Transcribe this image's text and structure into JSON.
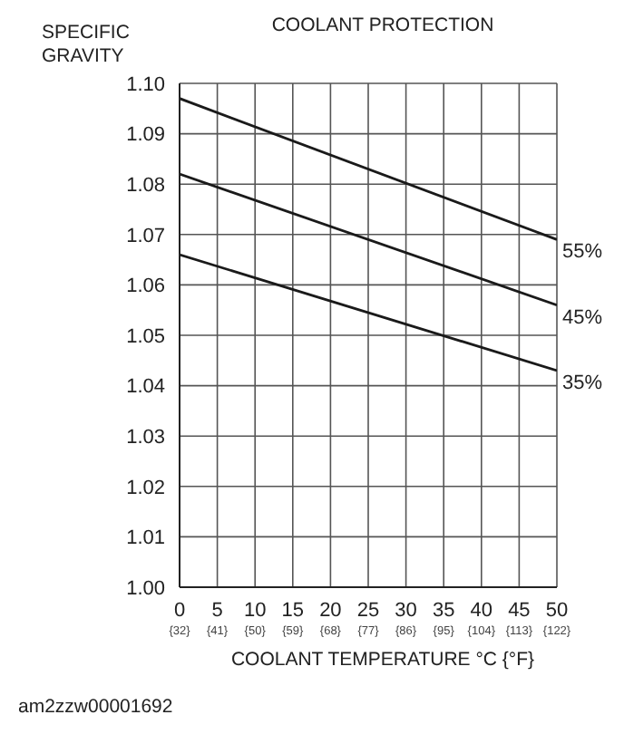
{
  "chart_data": {
    "type": "line",
    "title": "COOLANT PROTECTION",
    "ylabel": "SPECIFIC GRAVITY",
    "xlabel": "COOLANT TEMPERATURE  °C {°F}",
    "annotations": [
      "am2zzw00001692"
    ],
    "x": [
      0,
      50
    ],
    "series": [
      {
        "name": "55%",
        "color": "#1a1a1a",
        "values": [
          1.097,
          1.069
        ]
      },
      {
        "name": "45%",
        "color": "#1a1a1a",
        "values": [
          1.082,
          1.056
        ]
      },
      {
        "name": "35%",
        "color": "#1a1a1a",
        "values": [
          1.066,
          1.043
        ]
      }
    ],
    "xlim": [
      0,
      50
    ],
    "xticks": [
      0,
      5,
      10,
      15,
      20,
      25,
      30,
      35,
      40,
      45,
      50
    ],
    "x2lim": [
      32,
      122
    ],
    "x2ticks": [
      {
        "value": 32,
        "label": "{32}"
      },
      {
        "value": 41,
        "label": "{41}"
      },
      {
        "value": 50,
        "label": "{50}"
      },
      {
        "value": 59,
        "label": "{59}"
      },
      {
        "value": 68,
        "label": "{68}"
      },
      {
        "value": 77,
        "label": "{77}"
      },
      {
        "value": 86,
        "label": "{86}"
      },
      {
        "value": 95,
        "label": "{95}"
      },
      {
        "value": 104,
        "label": "{104}"
      },
      {
        "value": 113,
        "label": "{113}"
      },
      {
        "value": 122,
        "label": "{122}"
      }
    ],
    "ylim": [
      1.0,
      1.1
    ],
    "yticks": [
      {
        "value": 1.0,
        "label": "1.00"
      },
      {
        "value": 1.01,
        "label": "1.01"
      },
      {
        "value": 1.02,
        "label": "1.02"
      },
      {
        "value": 1.03,
        "label": "1.03"
      },
      {
        "value": 1.04,
        "label": "1.04"
      },
      {
        "value": 1.05,
        "label": "1.05"
      },
      {
        "value": 1.06,
        "label": "1.06"
      },
      {
        "value": 1.07,
        "label": "1.07"
      },
      {
        "value": 1.08,
        "label": "1.08"
      },
      {
        "value": 1.09,
        "label": "1.09"
      },
      {
        "value": 1.1,
        "label": "1.10"
      }
    ],
    "grid": true,
    "legend": false,
    "marker": "none",
    "line_style": "solid"
  }
}
